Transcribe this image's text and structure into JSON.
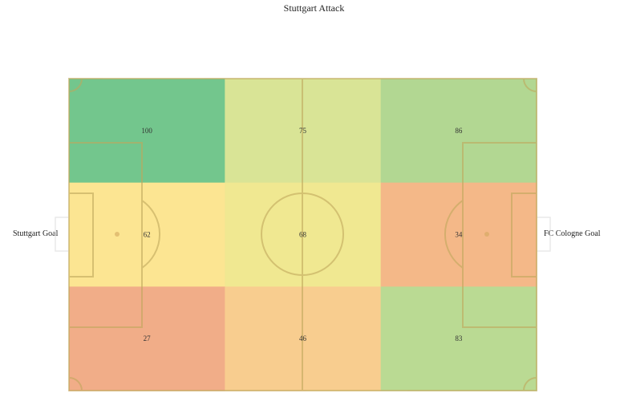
{
  "title": "Stuttgart Attack",
  "left_goal_label": "Stuttgart Goal",
  "right_goal_label": "FC Cologne Goal",
  "chart_data": {
    "type": "heatmap",
    "title": "Stuttgart Attack",
    "rows": [
      "top",
      "middle",
      "bottom"
    ],
    "columns": [
      "left third",
      "middle third",
      "right third"
    ],
    "values": [
      [
        100,
        75,
        86
      ],
      [
        62,
        68,
        34
      ],
      [
        27,
        46,
        83
      ]
    ],
    "cell_colors": [
      [
        "#73c68d",
        "#d9e496",
        "#b2d792"
      ],
      [
        "#fce592",
        "#f0e891",
        "#f4b888"
      ],
      [
        "#f1ad88",
        "#f8cd8f",
        "#bada93"
      ]
    ],
    "pitch_line_color": "#c8b070",
    "legend": "none"
  }
}
